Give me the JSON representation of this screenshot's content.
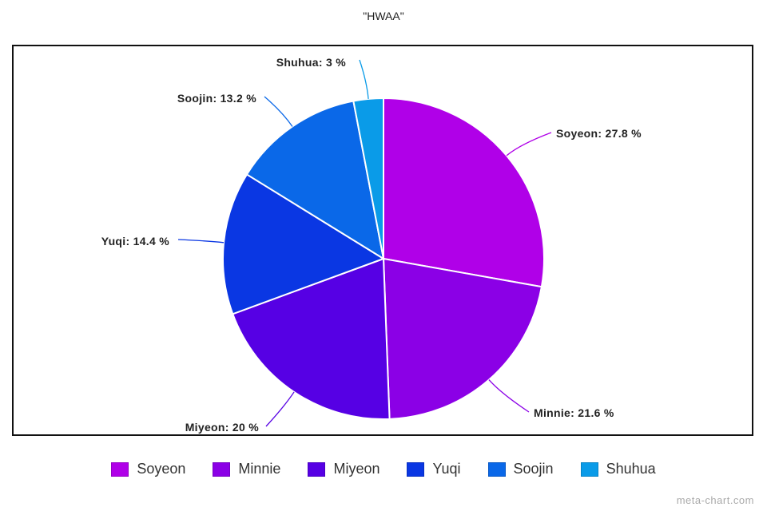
{
  "chart_data": {
    "type": "pie",
    "title": "\"HWAA\"",
    "categories": [
      "Soyeon",
      "Minnie",
      "Miyeon",
      "Yuqi",
      "Soojin",
      "Shuhua"
    ],
    "values": [
      27.8,
      21.6,
      20,
      14.4,
      13.2,
      3
    ],
    "value_unit": "%",
    "slice_labels": [
      "Soyeon: 27.8 %",
      "Minnie: 21.6 %",
      "Miyeon: 20 %",
      "Yuqi: 14.4 %",
      "Soojin: 13.2 %",
      "Shuhua: 3 %"
    ],
    "colors": [
      "#b000e8",
      "#8b00e6",
      "#5600e4",
      "#0a37e3",
      "#0a68e8",
      "#0a9be8"
    ],
    "legend": {
      "placement": "bottom",
      "entries": [
        "Soyeon",
        "Minnie",
        "Miyeon",
        "Yuqi",
        "Soojin",
        "Shuhua"
      ]
    },
    "start_angle": "top",
    "direction": "clockwise"
  },
  "watermark": "meta-chart.com"
}
